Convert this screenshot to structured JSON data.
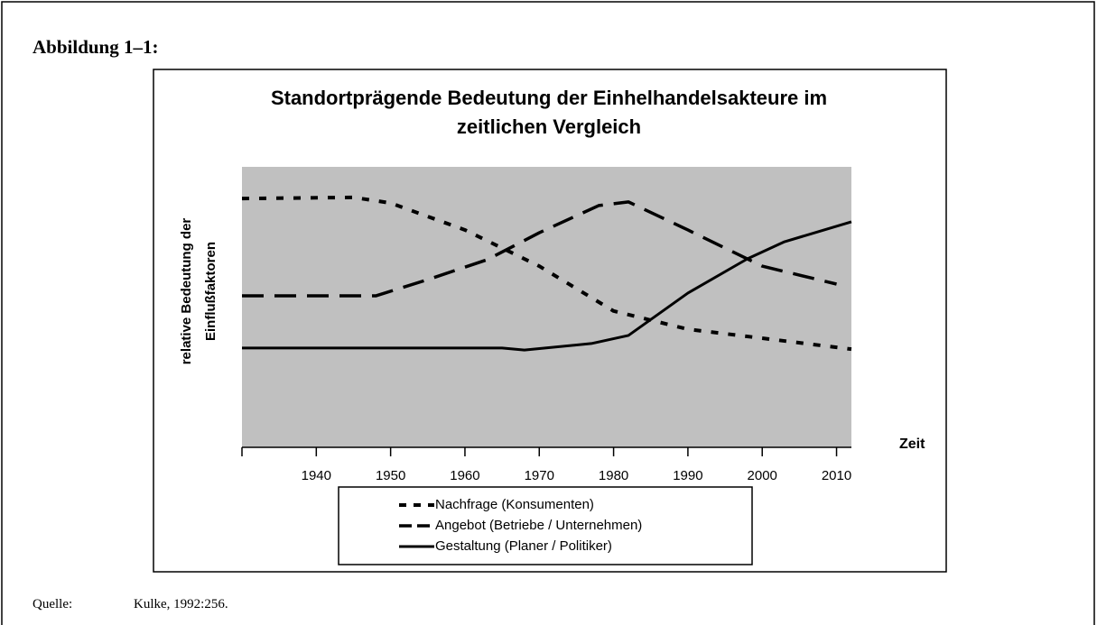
{
  "header": "Abbildung 1–1:",
  "source": {
    "label": "Quelle:",
    "text": "Kulke, 1992:256."
  },
  "chart_data": {
    "type": "line",
    "title": "Standortprägende Bedeutung der Einhelhandelsakteure im zeitlichen Vergleich",
    "ylabel": "relative Bedeutung der Einflußfaktoren",
    "xlabel": "Zeit",
    "xlim": [
      1930,
      2012
    ],
    "xticks": [
      1940,
      1950,
      1960,
      1970,
      1980,
      1990,
      2000,
      2010
    ],
    "ylim": [
      0,
      10
    ],
    "background": "#c0c0c0",
    "series": [
      {
        "name": "Nachfrage (Konsumenten)",
        "color": "#000000",
        "dash": "dotted",
        "x": [
          1930,
          1945,
          1950,
          1960,
          1970,
          1980,
          1990,
          2000,
          2012
        ],
        "values": [
          8.87,
          8.91,
          8.71,
          7.75,
          6.46,
          4.86,
          4.21,
          3.89,
          3.5
        ]
      },
      {
        "name": "Angebot (Betriebe / Unternehmen)",
        "color": "#000000",
        "dash": "dashed",
        "x": [
          1930,
          1948,
          1955,
          1963,
          1970,
          1978,
          1982,
          1990,
          2000,
          2010
        ],
        "values": [
          5.4,
          5.4,
          5.98,
          6.69,
          7.65,
          8.62,
          8.75,
          7.75,
          6.46,
          5.82
        ]
      },
      {
        "name": "Gestaltung (Planer / Politiker)",
        "color": "#000000",
        "dash": "solid",
        "x": [
          1930,
          1965,
          1968,
          1977,
          1982,
          1990,
          1998,
          2003,
          2012
        ],
        "values": [
          3.54,
          3.54,
          3.47,
          3.7,
          3.99,
          5.5,
          6.72,
          7.33,
          8.04
        ]
      }
    ]
  }
}
